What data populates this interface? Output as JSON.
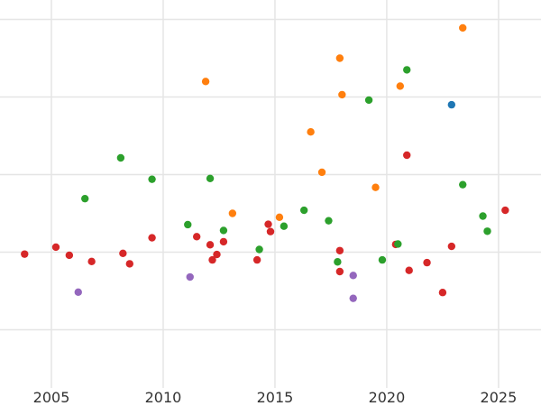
{
  "chart_data": {
    "type": "scatter",
    "title": "",
    "xlabel": "",
    "ylabel": "",
    "x_ticks": [
      "2005",
      "2010",
      "2015",
      "2020",
      "2025"
    ],
    "x_tick_values": [
      2005,
      2010,
      2015,
      2020,
      2025
    ],
    "xlim": [
      2002.7,
      2026.9
    ],
    "ylim": [
      0,
      5
    ],
    "y_gridlines": [
      0.75,
      1.75,
      2.75,
      3.75,
      4.75
    ],
    "grid": true,
    "legend": "none",
    "series": [
      {
        "color": "#d62728",
        "points": [
          {
            "x": 2003.8,
            "y": 1.725
          },
          {
            "x": 2005.2,
            "y": 1.815
          },
          {
            "x": 2005.8,
            "y": 1.71
          },
          {
            "x": 2006.8,
            "y": 1.63
          },
          {
            "x": 2008.2,
            "y": 1.735
          },
          {
            "x": 2008.5,
            "y": 1.6
          },
          {
            "x": 2009.5,
            "y": 1.935
          },
          {
            "x": 2011.5,
            "y": 1.95
          },
          {
            "x": 2012.1,
            "y": 1.845
          },
          {
            "x": 2012.2,
            "y": 1.65
          },
          {
            "x": 2012.4,
            "y": 1.72
          },
          {
            "x": 2012.7,
            "y": 1.885
          },
          {
            "x": 2014.2,
            "y": 1.65
          },
          {
            "x": 2014.7,
            "y": 2.11
          },
          {
            "x": 2014.8,
            "y": 2.015
          },
          {
            "x": 2017.9,
            "y": 1.77
          },
          {
            "x": 2017.9,
            "y": 1.5
          },
          {
            "x": 2020.4,
            "y": 1.85
          },
          {
            "x": 2020.9,
            "y": 3.0
          },
          {
            "x": 2021.0,
            "y": 1.515
          },
          {
            "x": 2021.8,
            "y": 1.615
          },
          {
            "x": 2022.5,
            "y": 1.23
          },
          {
            "x": 2022.9,
            "y": 1.825
          },
          {
            "x": 2025.3,
            "y": 2.29
          }
        ]
      },
      {
        "color": "#ff7f0e",
        "points": [
          {
            "x": 2011.9,
            "y": 3.95
          },
          {
            "x": 2013.1,
            "y": 2.25
          },
          {
            "x": 2015.2,
            "y": 2.2
          },
          {
            "x": 2016.6,
            "y": 3.3
          },
          {
            "x": 2017.1,
            "y": 2.78
          },
          {
            "x": 2017.9,
            "y": 4.25
          },
          {
            "x": 2018.0,
            "y": 3.78
          },
          {
            "x": 2019.5,
            "y": 2.585
          },
          {
            "x": 2020.6,
            "y": 3.89
          },
          {
            "x": 2023.4,
            "y": 4.64
          }
        ]
      },
      {
        "color": "#2ca02c",
        "points": [
          {
            "x": 2006.5,
            "y": 2.44
          },
          {
            "x": 2008.1,
            "y": 2.965
          },
          {
            "x": 2009.5,
            "y": 2.69
          },
          {
            "x": 2011.1,
            "y": 2.105
          },
          {
            "x": 2012.1,
            "y": 2.7
          },
          {
            "x": 2012.7,
            "y": 2.03
          },
          {
            "x": 2014.3,
            "y": 1.785
          },
          {
            "x": 2015.4,
            "y": 2.085
          },
          {
            "x": 2016.3,
            "y": 2.29
          },
          {
            "x": 2017.4,
            "y": 2.155
          },
          {
            "x": 2017.8,
            "y": 1.625
          },
          {
            "x": 2019.2,
            "y": 3.71
          },
          {
            "x": 2019.8,
            "y": 1.65
          },
          {
            "x": 2020.5,
            "y": 1.855
          },
          {
            "x": 2020.9,
            "y": 4.1
          },
          {
            "x": 2023.4,
            "y": 2.62
          },
          {
            "x": 2024.3,
            "y": 2.215
          },
          {
            "x": 2024.5,
            "y": 2.02
          }
        ]
      },
      {
        "color": "#1f77b4",
        "points": [
          {
            "x": 2022.9,
            "y": 3.65
          }
        ]
      },
      {
        "color": "#9467bd",
        "points": [
          {
            "x": 2006.2,
            "y": 1.235
          },
          {
            "x": 2011.2,
            "y": 1.43
          },
          {
            "x": 2018.5,
            "y": 1.45
          },
          {
            "x": 2018.5,
            "y": 1.155
          }
        ]
      }
    ]
  }
}
